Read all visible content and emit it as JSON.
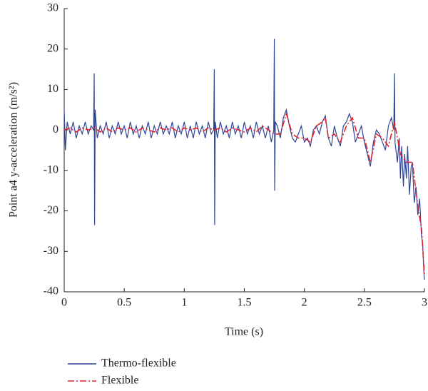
{
  "chart_data": {
    "type": "line",
    "xlabel": "Time (s)",
    "ylabel": "Point a4 y-acceleration (m/s²)",
    "xlim": [
      0,
      3
    ],
    "xticks": [
      0,
      0.5,
      1,
      1.5,
      2,
      2.5,
      3
    ],
    "ylim": [
      -40,
      30
    ],
    "yticks": [
      -40,
      -30,
      -20,
      -10,
      0,
      10,
      20,
      30
    ],
    "grid": false,
    "legend": "bottom",
    "series": [
      {
        "name": "Thermo-flexible",
        "color": "#2f4597",
        "dash": "solid",
        "x": [
          0,
          0.01,
          0.025,
          0.05,
          0.075,
          0.1,
          0.125,
          0.15,
          0.175,
          0.2,
          0.225,
          0.245,
          0.25,
          0.253,
          0.258,
          0.275,
          0.3,
          0.325,
          0.35,
          0.375,
          0.4,
          0.425,
          0.45,
          0.475,
          0.5,
          0.525,
          0.55,
          0.575,
          0.6,
          0.625,
          0.65,
          0.675,
          0.7,
          0.725,
          0.75,
          0.775,
          0.8,
          0.825,
          0.85,
          0.875,
          0.9,
          0.925,
          0.95,
          0.975,
          1,
          1.025,
          1.05,
          1.075,
          1.1,
          1.125,
          1.15,
          1.175,
          1.2,
          1.225,
          1.245,
          1.25,
          1.253,
          1.258,
          1.275,
          1.3,
          1.325,
          1.35,
          1.375,
          1.4,
          1.425,
          1.45,
          1.475,
          1.5,
          1.525,
          1.55,
          1.575,
          1.6,
          1.625,
          1.65,
          1.675,
          1.7,
          1.725,
          1.745,
          1.75,
          1.753,
          1.758,
          1.775,
          1.8,
          1.825,
          1.85,
          1.875,
          1.9,
          1.925,
          1.95,
          1.975,
          2,
          2.025,
          2.05,
          2.075,
          2.1,
          2.125,
          2.15,
          2.175,
          2.2,
          2.225,
          2.25,
          2.275,
          2.3,
          2.325,
          2.35,
          2.375,
          2.4,
          2.425,
          2.45,
          2.475,
          2.5,
          2.525,
          2.55,
          2.575,
          2.6,
          2.625,
          2.65,
          2.675,
          2.7,
          2.725,
          2.745,
          2.75,
          2.755,
          2.775,
          2.79,
          2.8,
          2.81,
          2.825,
          2.835,
          2.85,
          2.86,
          2.875,
          2.89,
          2.9,
          2.915,
          2.93,
          2.945,
          2.96,
          2.975,
          2.985,
          2.995,
          3
        ],
        "values": [
          5,
          -5,
          2,
          -1,
          2,
          -2,
          1,
          -1,
          2,
          -1,
          1,
          0,
          14,
          -23.5,
          5,
          -2,
          1,
          -1,
          2,
          -2,
          1,
          -1,
          2,
          -1,
          1,
          -2,
          2,
          -1,
          1,
          -2,
          1,
          -1,
          2,
          -2,
          1,
          -1,
          2,
          -1,
          1,
          -1,
          2,
          -2,
          1,
          -1,
          2,
          -2,
          1,
          -2,
          2,
          -1,
          1,
          -2,
          2,
          -1,
          0,
          15,
          -23.5,
          2,
          -2,
          2,
          -1,
          1,
          -2,
          2,
          -1,
          1,
          -2,
          2,
          -1,
          1,
          -2,
          2,
          -1,
          1,
          -2,
          1,
          -3,
          0,
          22.5,
          -15,
          2,
          1,
          -2,
          3,
          5,
          1,
          -2,
          -3,
          -1,
          1,
          -3,
          -2,
          -4,
          0,
          1,
          -1,
          2,
          3.5,
          -2,
          -4,
          1,
          -2,
          -4,
          1,
          2,
          4,
          2,
          -3,
          -1,
          1,
          -3,
          -6,
          -9,
          -3,
          0,
          -1,
          -3,
          -5,
          1,
          3,
          0,
          14,
          -3,
          -8,
          -2,
          -12,
          -4,
          -14,
          -6,
          -12,
          -4,
          -16,
          -9,
          -8,
          -18,
          -14,
          -21,
          -17,
          -26,
          -28,
          -35,
          -37
        ]
      },
      {
        "name": "Flexible",
        "color": "#e8202a",
        "dash": "dashdot",
        "x": [
          0,
          0.05,
          0.1,
          0.15,
          0.2,
          0.25,
          0.3,
          0.35,
          0.4,
          0.45,
          0.5,
          0.55,
          0.6,
          0.65,
          0.7,
          0.75,
          0.8,
          0.85,
          0.9,
          0.95,
          1,
          1.05,
          1.1,
          1.15,
          1.2,
          1.25,
          1.3,
          1.35,
          1.4,
          1.45,
          1.5,
          1.55,
          1.6,
          1.65,
          1.7,
          1.75,
          1.8,
          1.85,
          1.9,
          1.95,
          2,
          2.05,
          2.1,
          2.15,
          2.175,
          2.2,
          2.25,
          2.3,
          2.35,
          2.4,
          2.45,
          2.5,
          2.55,
          2.6,
          2.65,
          2.7,
          2.75,
          2.8,
          2.85,
          2.9,
          2.95,
          2.975,
          3
        ],
        "values": [
          0,
          0.5,
          -0.5,
          0.5,
          0,
          0.5,
          -0.5,
          0.5,
          -0.5,
          0.5,
          0,
          0.5,
          -0.5,
          0.5,
          0,
          -0.5,
          0.5,
          0,
          0.5,
          -0.5,
          0.5,
          0,
          0.5,
          -0.5,
          0.5,
          0,
          0.5,
          -0.5,
          0.5,
          0,
          -0.5,
          0.5,
          -0.5,
          1,
          0,
          -1,
          -1,
          4,
          -1,
          -2,
          -2,
          -3,
          1,
          2,
          3,
          -2,
          -1,
          -3,
          1,
          3,
          -2,
          -2,
          -8,
          -1,
          -2,
          -4,
          2,
          -6,
          -8,
          -8,
          -20,
          -24,
          -36
        ]
      }
    ]
  }
}
